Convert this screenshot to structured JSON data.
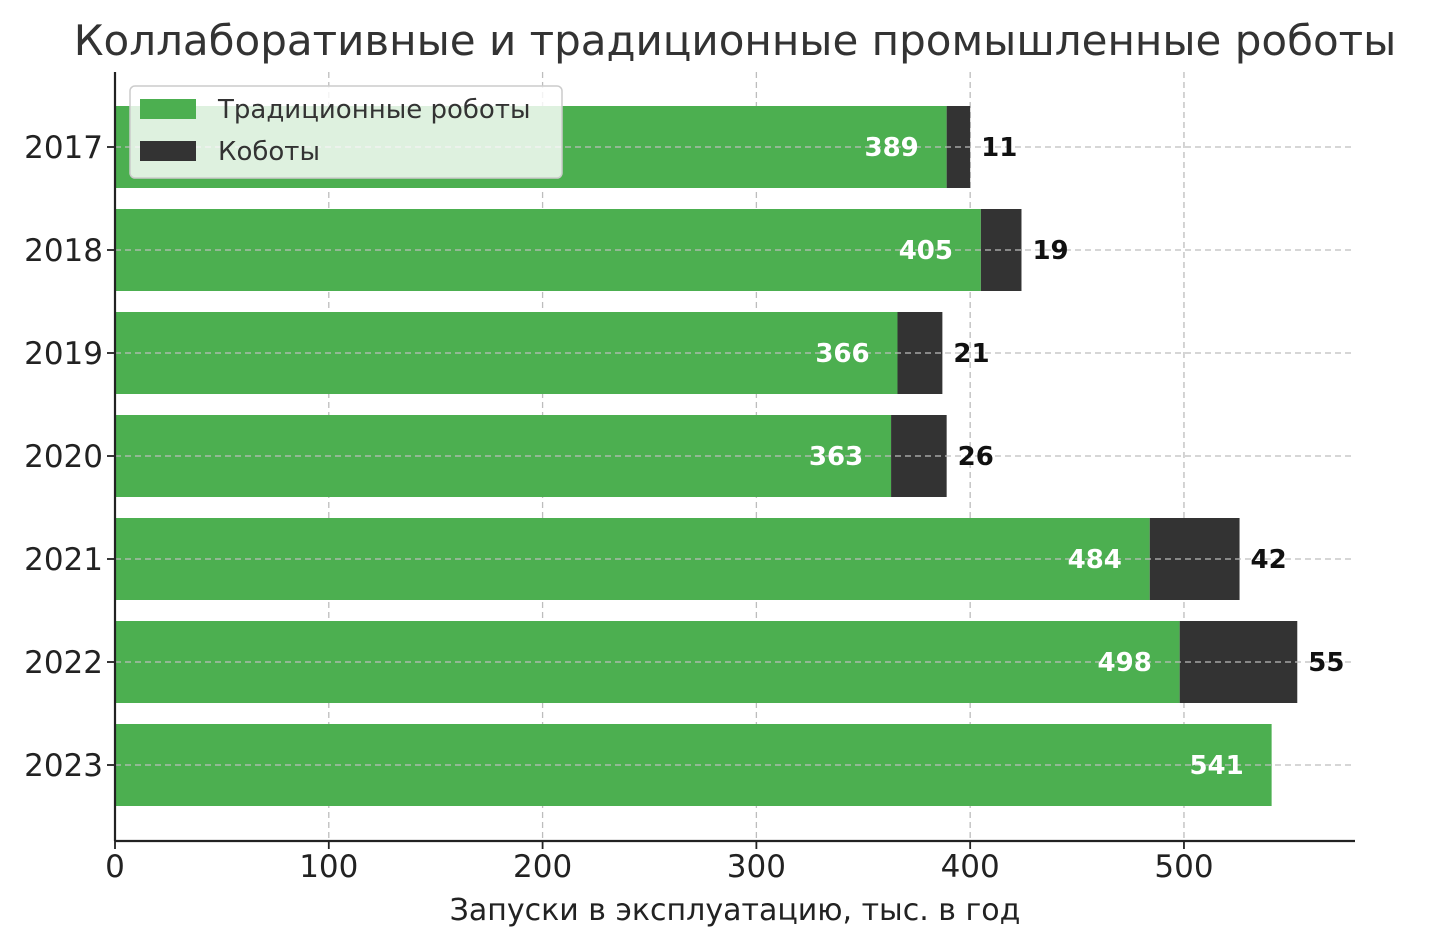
{
  "chart_data": {
    "type": "bar",
    "orientation": "horizontal",
    "stacked": true,
    "title": "Коллаборативные и традиционные промышленные роботы",
    "xlabel": "Запуски в эксплуатацию, тыс. в год",
    "ylabel": "",
    "categories": [
      "2017",
      "2018",
      "2019",
      "2020",
      "2021",
      "2022",
      "2023"
    ],
    "series": [
      {
        "name": "Традиционные роботы",
        "values": [
          389,
          405,
          366,
          363,
          484,
          498,
          541
        ],
        "color": "#4caf50"
      },
      {
        "name": "Коботы",
        "values": [
          11,
          19,
          21,
          26,
          42,
          55,
          0
        ],
        "color": "#333333"
      }
    ],
    "xlim": [
      0,
      580
    ],
    "xticks": [
      0,
      100,
      200,
      300,
      400,
      500
    ],
    "grid": true,
    "legend": "top-left"
  }
}
